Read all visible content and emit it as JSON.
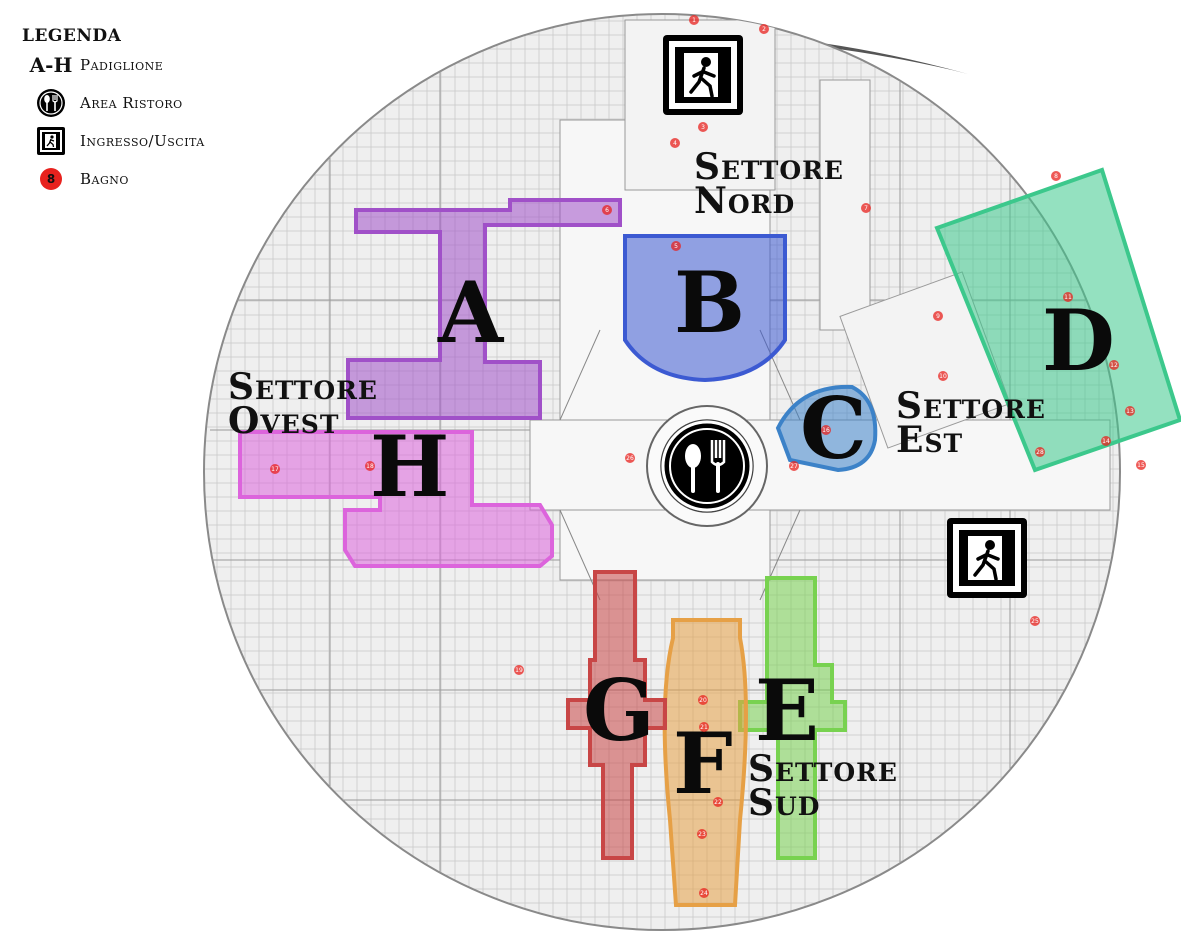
{
  "legend": {
    "title": "LEGENDA",
    "pavilion_symbol": "A-H",
    "pavilion_label": "Padiglione",
    "food_label": "Area Ristoro",
    "food_icon": "fork-spoon-icon",
    "exit_label": "Ingresso/Uscita",
    "exit_icon": "running-man-exit-icon",
    "restroom_symbol": "8",
    "restroom_label": "Bagno"
  },
  "sectors": {
    "nord": [
      "Settore",
      "Nord"
    ],
    "ovest": [
      "Settore",
      "Ovest"
    ],
    "est": [
      "Settore",
      "Est"
    ],
    "sud": [
      "Settore",
      "Sud"
    ]
  },
  "pavilions": [
    {
      "letter": "A",
      "color": "#a050c8"
    },
    {
      "letter": "B",
      "color": "#3c5ad2"
    },
    {
      "letter": "C",
      "color": "#3c82c8"
    },
    {
      "letter": "D",
      "color": "#3cc88c"
    },
    {
      "letter": "E",
      "color": "#78d250"
    },
    {
      "letter": "F",
      "color": "#e6a046"
    },
    {
      "letter": "G",
      "color": "#c84646"
    },
    {
      "letter": "H",
      "color": "#dc64dc"
    }
  ],
  "restrooms": [
    "1",
    "2",
    "3",
    "4",
    "5",
    "6",
    "7",
    "8",
    "9",
    "10",
    "11",
    "12",
    "13",
    "14",
    "15",
    "16",
    "17",
    "18",
    "19",
    "20",
    "21",
    "22",
    "23",
    "24",
    "25",
    "26",
    "27",
    "28"
  ],
  "colors": {
    "restroom": "#e8221e",
    "ink": "#111111",
    "floor": "#efefef"
  }
}
